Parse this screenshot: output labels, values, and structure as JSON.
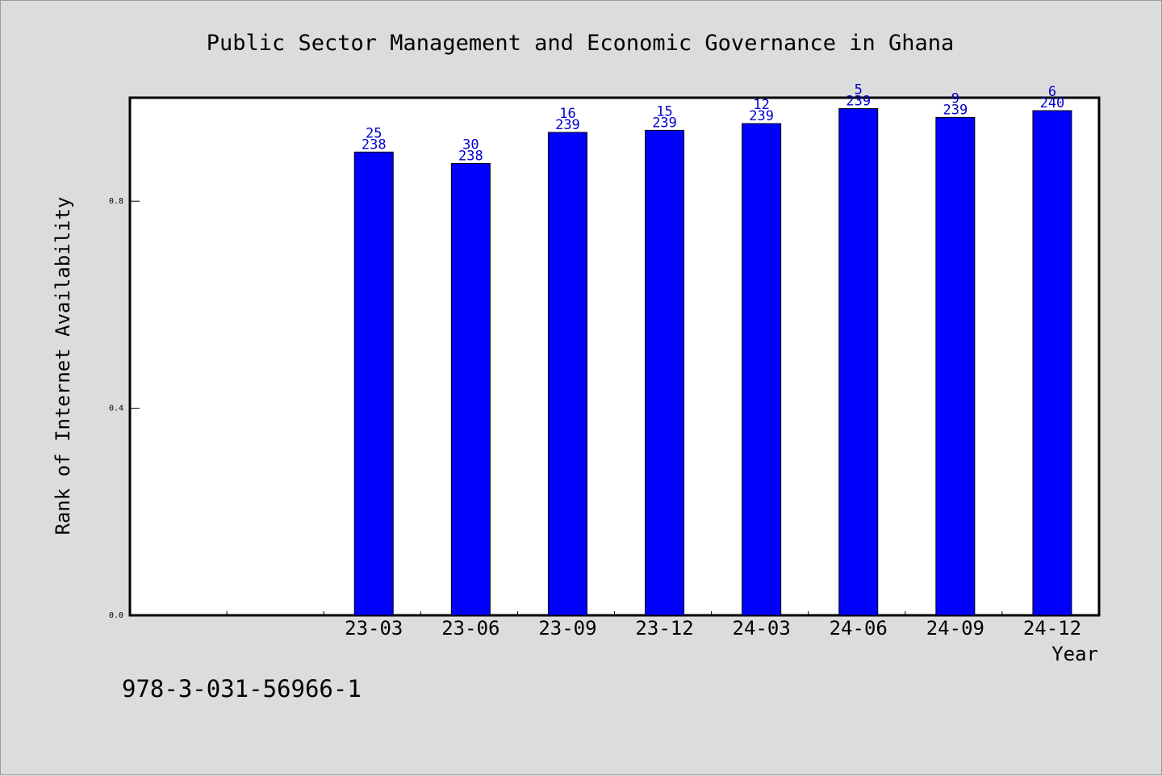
{
  "chart_data": {
    "type": "bar",
    "title": "Public Sector Management and Economic Governance in Ghana",
    "xlabel": "Year",
    "ylabel": "Rank of Internet Availability",
    "categories": [
      "23-03",
      "23-06",
      "23-09",
      "23-12",
      "24-03",
      "24-06",
      "24-09",
      "24-12"
    ],
    "x_axis_slots": 10,
    "values": [
      0.895,
      0.873,
      0.933,
      0.937,
      0.95,
      0.979,
      0.962,
      0.975
    ],
    "rank_labels": [
      "25",
      "30",
      "16",
      "15",
      "12",
      "5",
      "9",
      "6"
    ],
    "total_labels": [
      "238",
      "238",
      "239",
      "239",
      "239",
      "239",
      "239",
      "240"
    ],
    "yticks": [
      "0.0",
      "0.4",
      "0.8"
    ],
    "ylim": [
      0,
      1.0
    ],
    "grid": false,
    "bar_color": "#0000ff",
    "label_color": "#0000cc"
  },
  "footnote": "978-3-031-56966-1"
}
